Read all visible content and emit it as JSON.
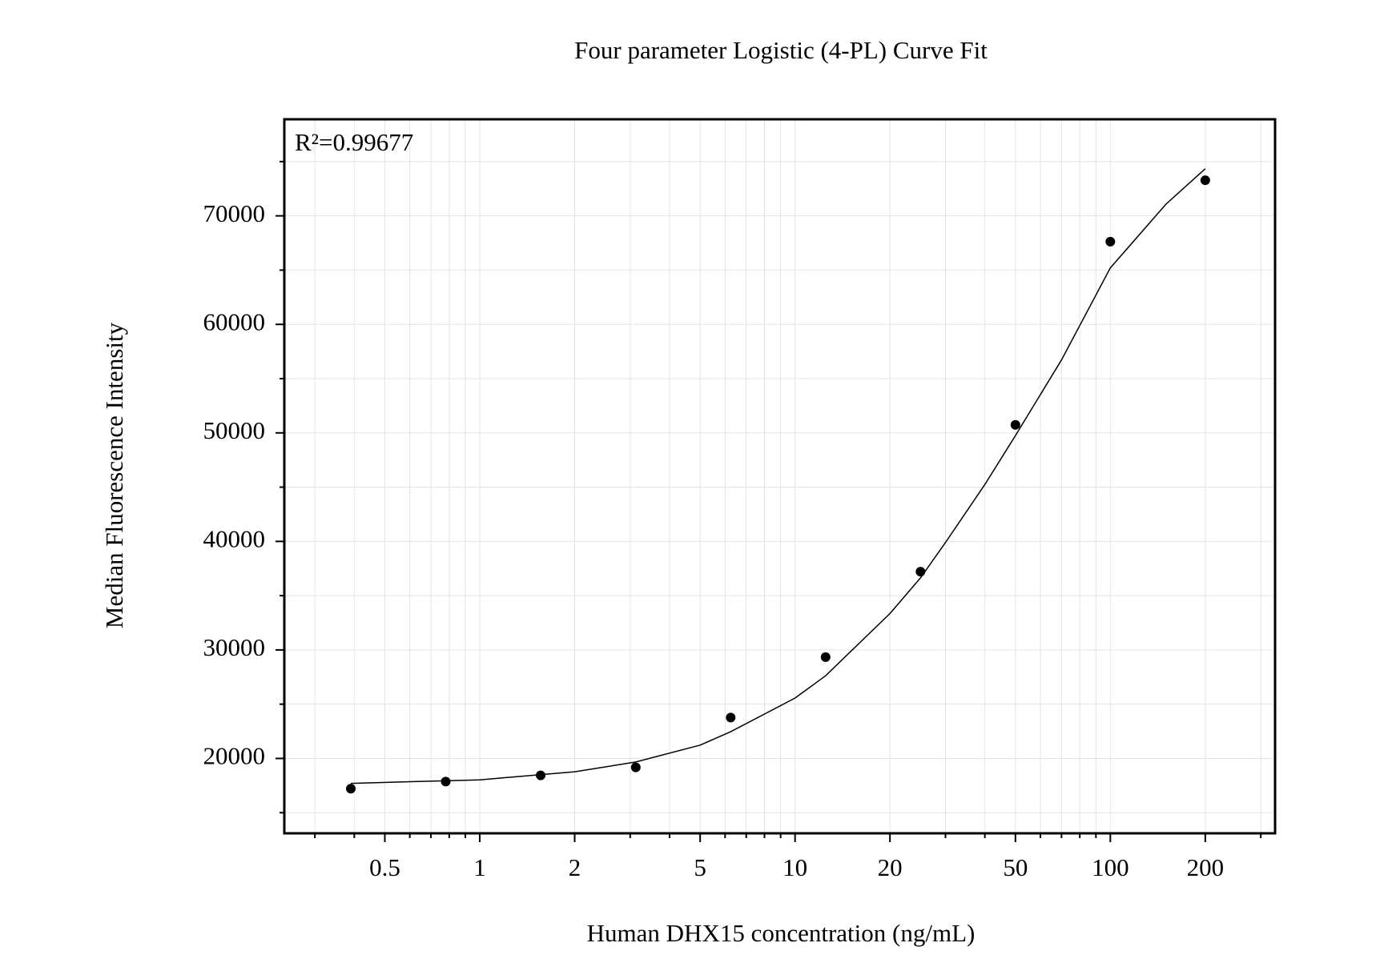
{
  "chart_data": {
    "type": "scatter",
    "title": "Four parameter Logistic (4-PL) Curve Fit",
    "annotation": "R²=0.99677",
    "x_label": "Human DHX15 concentration (ng/mL)",
    "y_label": "Median Fluorescence Intensity",
    "x_scale": "log",
    "grid": true,
    "xlim": [
      0.24,
      333
    ],
    "ylim": [
      13100,
      78900
    ],
    "xticks": [
      0.5,
      1,
      2,
      5,
      10,
      20,
      50,
      100,
      200
    ],
    "xminorticks": [
      0.3,
      0.4,
      0.6,
      0.7,
      0.8,
      0.9,
      3,
      4,
      6,
      7,
      8,
      9,
      30,
      40,
      60,
      70,
      80,
      90,
      300
    ],
    "yticks": [
      20000,
      30000,
      40000,
      50000,
      60000,
      70000
    ],
    "yminorticks": [
      15000,
      25000,
      35000,
      45000,
      55000,
      65000,
      75000
    ],
    "series": [
      {
        "kind": "points",
        "color": "#000000",
        "x": [
          0.39,
          0.78,
          1.56,
          3.125,
          6.25,
          12.5,
          25,
          50,
          100,
          200
        ],
        "values": [
          17213,
          17870,
          18440,
          19180,
          23770,
          29340,
          37210,
          50740,
          67620,
          73280
        ]
      },
      {
        "kind": "curve",
        "color": "#000000",
        "x": [
          0.39,
          1,
          2,
          3.125,
          5,
          6.25,
          10,
          12.5,
          20,
          25,
          30,
          40,
          50,
          70,
          100,
          150,
          200
        ],
        "values": [
          17700,
          18030,
          18770,
          19670,
          21230,
          22460,
          25570,
          27620,
          33360,
          36640,
          39900,
          45250,
          49750,
          56720,
          65200,
          71070,
          74340
        ]
      }
    ]
  }
}
